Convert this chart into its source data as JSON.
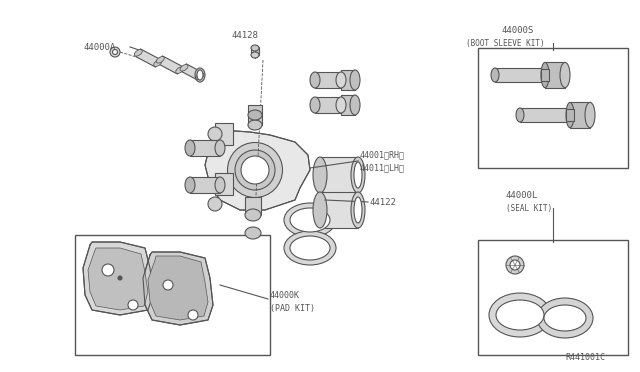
{
  "bg_color": "#ffffff",
  "line_color": "#555555",
  "fig_width": 6.4,
  "fig_height": 3.72,
  "dpi": 100,
  "ref_number": "R441001C",
  "label_44000A": "44000A",
  "label_44128": "44128",
  "label_44001": "44001（RH）",
  "label_44011": "44011（LH）",
  "label_44122": "44122",
  "label_44000K": "44000K",
  "label_pad_kit": "(PAD KIT)",
  "label_44000S": "44000S",
  "label_boot_sleeve": "(BOOT SLEEVE KIT)",
  "label_44000L": "44000L",
  "label_seal_kit": "(SEAL KIT)"
}
